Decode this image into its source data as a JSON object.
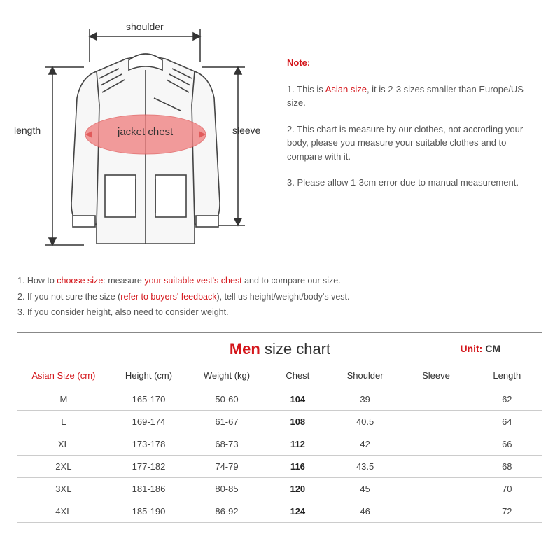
{
  "diagram": {
    "shoulder_label": "shoulder",
    "length_label": "length",
    "sleeve_label": "sleeve",
    "chest_label": "jacket chest",
    "chest_ellipse_color": "#f08080",
    "chest_ellipse_opacity": 0.75,
    "stroke_color": "#444444",
    "fill_color": "#f6f6f6"
  },
  "note": {
    "title": "Note:",
    "line1_a": "1. This is ",
    "line1_b": "Asian size",
    "line1_c": ", it is 2-3 sizes smaller than Europe/US size.",
    "line2": "2. This chart is measure by our clothes, not accroding your body, please you measure your suitable clothes and to compare with it.",
    "line3": "3. Please allow 1-3cm error due to manual measurement."
  },
  "tips": {
    "t1a": "1. How to ",
    "t1b": "choose size",
    "t1c": ": measure ",
    "t1d": "your suitable vest's chest",
    "t1e": " and to compare our size.",
    "t2a": "2. If you not sure the size (",
    "t2b": "refer to buyers' feedback",
    "t2c": "), tell us height/weight/body's vest.",
    "t3": "3. If you consider height, also need to consider weight."
  },
  "chart": {
    "title_men": "Men",
    "title_rest": " size chart",
    "unit_label": "Unit:",
    "unit_value": " CM",
    "columns": [
      "Asian Size (cm)",
      "Height (cm)",
      "Weight (kg)",
      "Chest",
      "Shoulder",
      "Sleeve",
      "Length"
    ],
    "rows": [
      {
        "size": "M",
        "height": "165-170",
        "weight": "50-60",
        "chest": "104",
        "shoulder": "39",
        "sleeve": "",
        "length": "62"
      },
      {
        "size": "L",
        "height": "169-174",
        "weight": "61-67",
        "chest": "108",
        "shoulder": "40.5",
        "sleeve": "",
        "length": "64"
      },
      {
        "size": "XL",
        "height": "173-178",
        "weight": "68-73",
        "chest": "112",
        "shoulder": "42",
        "sleeve": "",
        "length": "66"
      },
      {
        "size": "2XL",
        "height": "177-182",
        "weight": "74-79",
        "chest": "116",
        "shoulder": "43.5",
        "sleeve": "",
        "length": "68"
      },
      {
        "size": "3XL",
        "height": "181-186",
        "weight": "80-85",
        "chest": "120",
        "shoulder": "45",
        "sleeve": "",
        "length": "70"
      },
      {
        "size": "4XL",
        "height": "185-190",
        "weight": "86-92",
        "chest": "124",
        "shoulder": "46",
        "sleeve": "",
        "length": "72"
      }
    ]
  },
  "colors": {
    "red": "#d4161b",
    "text": "#444444",
    "border": "#888888"
  }
}
